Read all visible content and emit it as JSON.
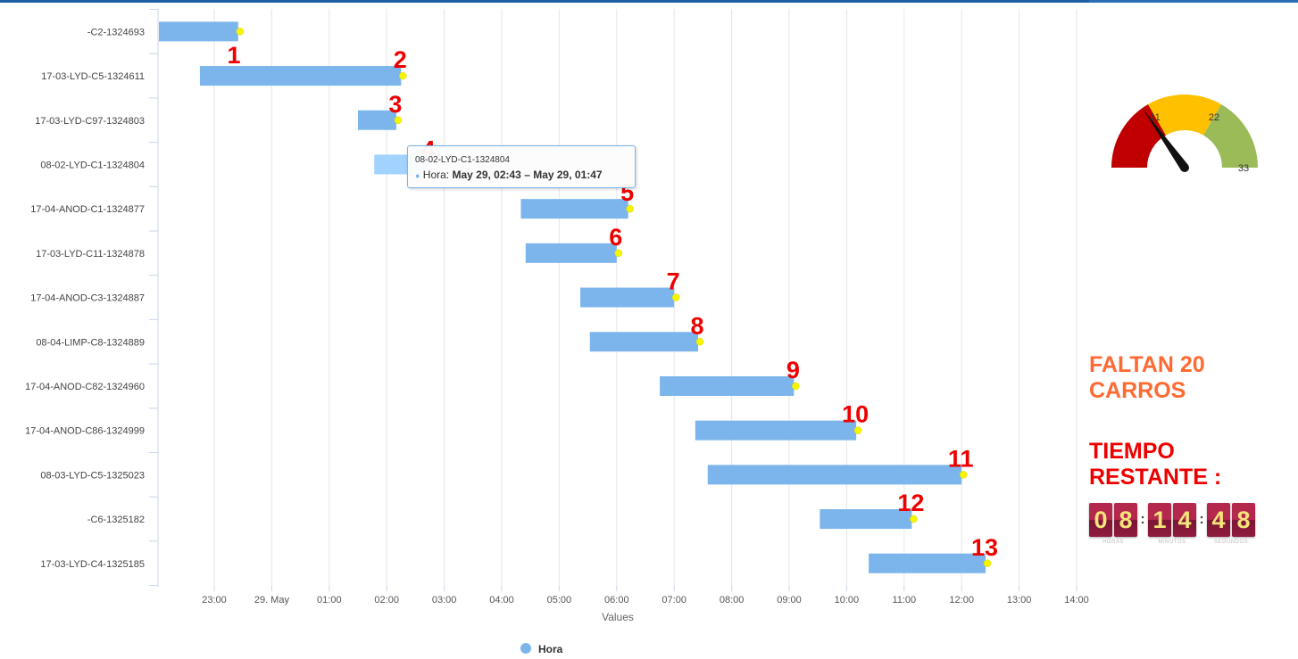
{
  "chart_data": {
    "type": "gantt",
    "xlabel": "Values",
    "x_ticks": [
      "23:00",
      "29. May",
      "01:00",
      "02:00",
      "03:00",
      "04:00",
      "05:00",
      "06:00",
      "07:00",
      "08:00",
      "09:00",
      "10:00",
      "11:00",
      "12:00",
      "13:00",
      "14:00"
    ],
    "xlim": [
      "May 28, 22:00",
      "May 29, 14:00"
    ],
    "legend": {
      "name": "Hora",
      "position": "bottom-center"
    },
    "bar_color": "#7cb5ec",
    "highlight_color": "#a2d2ff",
    "marker_color": "#f5f500",
    "label_color": "#ee0000",
    "tasks": [
      {
        "category": "-C2-1324693",
        "start": "May 28, 21:55",
        "end": "May 28, 23:25",
        "label": ""
      },
      {
        "category": "17-03-LYD-C5-1324611",
        "start": "May 28, 22:45",
        "end": "May 29, 02:15",
        "label": "1",
        "label2": "2"
      },
      {
        "category": "17-03-LYD-C97-1324803",
        "start": "May 29, 01:30",
        "end": "May 29, 02:10",
        "label": "3"
      },
      {
        "category": "08-02-LYD-C1-1324804",
        "start": "May 29, 01:47",
        "end": "May 29, 02:43",
        "label": "4"
      },
      {
        "category": "17-04-ANOD-C1-1324877",
        "start": "May 29, 04:20",
        "end": "May 29, 06:12",
        "label": "5"
      },
      {
        "category": "17-03-LYD-C11-1324878",
        "start": "May 29, 04:25",
        "end": "May 29, 06:00",
        "label": "6"
      },
      {
        "category": "17-04-ANOD-C3-1324887",
        "start": "May 29, 05:22",
        "end": "May 29, 07:00",
        "label": "7"
      },
      {
        "category": "08-04-LIMP-C8-1324889",
        "start": "May 29, 05:32",
        "end": "May 29, 07:25",
        "label": "8"
      },
      {
        "category": "17-04-ANOD-C82-1324960",
        "start": "May 29, 06:45",
        "end": "May 29, 09:05",
        "label": "9"
      },
      {
        "category": "17-04-ANOD-C86-1324999",
        "start": "May 29, 07:22",
        "end": "May 29, 10:10",
        "label": "10"
      },
      {
        "category": "08-03-LYD-C5-1325023",
        "start": "May 29, 07:35",
        "end": "May 29, 12:00",
        "label": "11"
      },
      {
        "category": "-C6-1325182",
        "start": "May 29, 09:32",
        "end": "May 29, 11:08",
        "label": "12"
      },
      {
        "category": "17-03-LYD-C4-1325185",
        "start": "May 29, 10:23",
        "end": "May 29, 12:25",
        "label": "13"
      }
    ],
    "tooltip": {
      "title": "08-02-LYD-C1-1324804",
      "series": "Hora",
      "value": "May 29, 02:43 – May 29, 01:47"
    }
  },
  "gauge": {
    "ticks": [
      "11",
      "22",
      "33"
    ],
    "min": 0,
    "max": 33,
    "value": 10,
    "bands": [
      {
        "from": 0,
        "to": 11,
        "color": "#c00000"
      },
      {
        "from": 11,
        "to": 22,
        "color": "#ffc000"
      },
      {
        "from": 22,
        "to": 33,
        "color": "#9bbb59"
      }
    ]
  },
  "status": {
    "faltan_line1": "FALTAN 20",
    "faltan_line2": "CARROS",
    "tiempo_line1": "TIEMPO",
    "tiempo_line2": "RESTANTE :"
  },
  "countdown": {
    "hours": [
      "0",
      "8"
    ],
    "minutes": [
      "1",
      "4"
    ],
    "seconds": [
      "4",
      "8"
    ],
    "separator": ":",
    "labels": {
      "hours": "HORAS",
      "minutes": "MINUTOS",
      "seconds": "SEGUNDOS"
    }
  }
}
